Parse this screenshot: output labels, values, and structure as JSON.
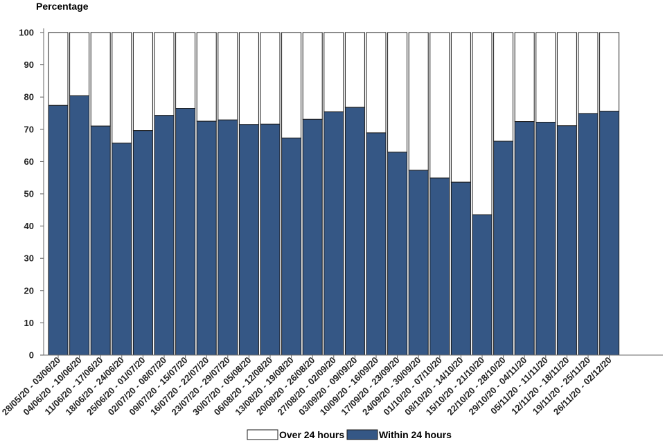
{
  "chart_data": {
    "type": "bar",
    "stacked": true,
    "ylabel": "Percentage",
    "ylim": [
      0,
      100
    ],
    "yticks": [
      0,
      10,
      20,
      30,
      40,
      50,
      60,
      70,
      80,
      90,
      100
    ],
    "grid": false,
    "legend_position": "bottom",
    "categories": [
      "28/05/20 - 03/06/20",
      "04/06/20 - 10/06/20",
      "11/06/20 - 17/06/20",
      "18/06/20 - 24/06/20",
      "25/06/20 - 01/07/20",
      "02/07/20 - 08/07/20",
      "09/07/20 - 15/07/20",
      "16/07/20 - 22/07/20",
      "23/07/20 - 29/07/20",
      "30/07/20 - 05/08/20",
      "06/08/20 - 12/08/20",
      "13/08/20 - 19/08/20",
      "20/08/20 - 26/08/20",
      "27/08/20 - 02/09/20",
      "03/09/20 - 09/09/20",
      "10/09/20 - 16/09/20",
      "17/09/20 - 23/09/20",
      "24/09/20 - 30/09/20",
      "01/10/20 - 07/10/20",
      "08/10/20 - 14/10/20",
      "15/10/20 - 21/10/20",
      "22/10/20 - 28/10/20",
      "29/10/20 - 04/11/20",
      "05/11/20 - 11/11/20",
      "12/11/20 - 18/11/20",
      "19/11/20 - 25/11/20",
      "26/11/20 - 02/12/20"
    ],
    "series": [
      {
        "name": "Within 24 hours",
        "color": "#355785",
        "values": [
          77.4,
          80.4,
          71.0,
          65.7,
          69.6,
          74.3,
          76.5,
          72.5,
          72.9,
          71.5,
          71.6,
          67.3,
          73.1,
          75.4,
          76.8,
          68.9,
          62.9,
          57.3,
          54.9,
          53.6,
          43.5,
          66.3,
          72.4,
          72.2,
          71.1,
          74.9,
          75.6
        ]
      },
      {
        "name": "Over 24 hours",
        "color": "#ffffff",
        "values": [
          22.6,
          19.6,
          29.0,
          34.3,
          30.4,
          25.7,
          23.5,
          27.5,
          27.1,
          28.5,
          28.4,
          32.7,
          26.9,
          24.6,
          23.2,
          31.1,
          37.1,
          42.7,
          45.1,
          46.4,
          56.5,
          33.7,
          27.6,
          27.8,
          28.9,
          25.1,
          24.4
        ]
      }
    ],
    "legend_order": [
      "Over 24 hours",
      "Within 24 hours"
    ]
  }
}
